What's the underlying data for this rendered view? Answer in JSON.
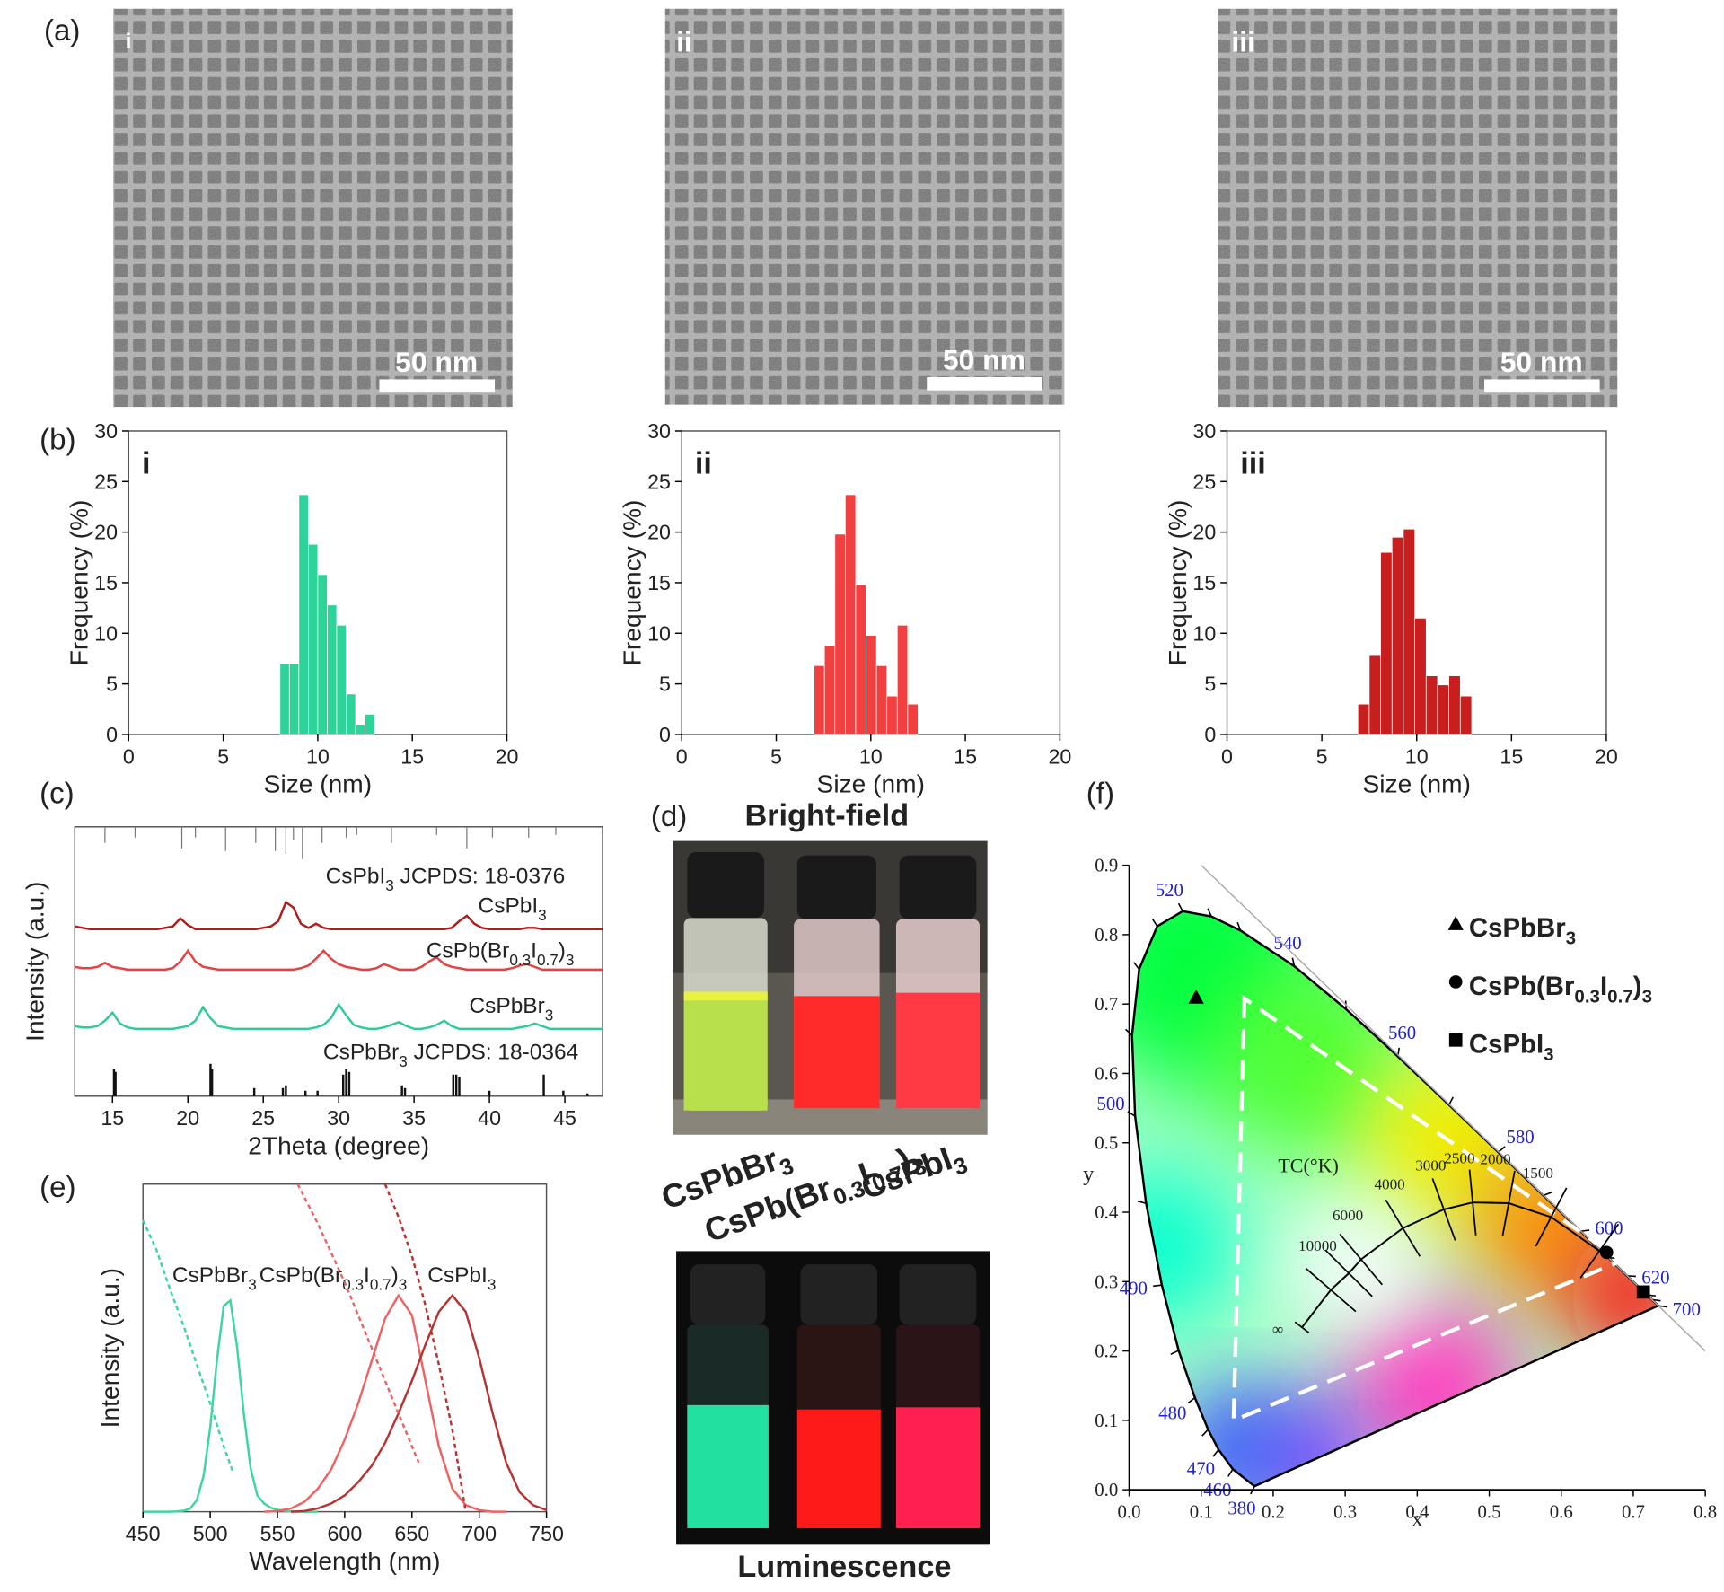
{
  "panel_labels": [
    "(a)",
    "(b)",
    "(c)",
    "(d)",
    "(e)",
    "(f)"
  ],
  "tem": {
    "labels": [
      "i",
      "ii",
      "iii"
    ],
    "scale_bar": "50 nm"
  },
  "photos": {
    "top_title": "Bright-field",
    "bottom_title": "Luminescence",
    "samples": [
      "CsPbBr3",
      "CsPb(Br0.3I0.7)3",
      "CsPbI3"
    ]
  },
  "chart_data": [
    {
      "type": "histogram",
      "label": "i",
      "xlabel": "Size (nm)",
      "ylabel": "Frequency (%)",
      "bins": [
        8,
        8.5,
        9,
        9.5,
        10,
        10.5,
        11,
        11.5,
        12,
        12.5,
        13
      ],
      "values": [
        7,
        7,
        23.7,
        18.8,
        15.8,
        12.8,
        10.8,
        4,
        1,
        2
      ],
      "color": "#2ed39a",
      "xlim": [
        0,
        20
      ],
      "xticks": [
        0,
        5,
        10,
        15,
        20
      ],
      "ylim": [
        0,
        30
      ],
      "yticks": [
        0,
        5,
        10,
        15,
        20,
        25,
        30
      ]
    },
    {
      "type": "histogram",
      "label": "ii",
      "xlabel": "Size (nm)",
      "ylabel": "Frequency (%)",
      "bins": [
        7,
        7.55,
        8.1,
        8.65,
        9.2,
        9.75,
        10.3,
        10.85,
        11.4,
        11.95,
        12.5
      ],
      "values": [
        6.8,
        8.8,
        19.8,
        23.7,
        14.8,
        9.8,
        6.8,
        3.8,
        10.8,
        3
      ],
      "color": "#f23f3f",
      "xlim": [
        0,
        20
      ],
      "xticks": [
        0,
        5,
        10,
        15,
        20
      ],
      "ylim": [
        0,
        30
      ],
      "yticks": [
        0,
        5,
        10,
        15,
        20,
        25,
        30
      ]
    },
    {
      "type": "histogram",
      "label": "iii",
      "xlabel": "Size (nm)",
      "ylabel": "Frequency (%)",
      "bins": [
        6.9,
        7.5,
        8.1,
        8.7,
        9.3,
        9.9,
        10.5,
        11.1,
        11.7,
        12.3,
        12.9
      ],
      "values": [
        3,
        7.8,
        18,
        19.5,
        20.3,
        11.5,
        5.8,
        4.9,
        5.8,
        3.8
      ],
      "color": "#c81e1e",
      "xlim": [
        0,
        20
      ],
      "xticks": [
        0,
        5,
        10,
        15,
        20
      ],
      "ylim": [
        0,
        30
      ],
      "yticks": [
        0,
        5,
        10,
        15,
        20,
        25,
        30
      ]
    },
    {
      "type": "line",
      "xlabel": "2Theta (degree)",
      "ylabel": "Intensity (a.u.)",
      "xlim": [
        12.5,
        47.5
      ],
      "xticks": [
        15,
        20,
        25,
        30,
        35,
        40,
        45
      ],
      "ylim": [
        0,
        100
      ],
      "x": [
        12.5,
        13,
        13.5,
        14,
        14.5,
        15,
        15.5,
        16,
        16.5,
        17,
        17.5,
        18,
        18.5,
        19,
        19.5,
        20,
        20.5,
        21,
        21.5,
        22,
        22.5,
        23,
        23.5,
        24,
        24.5,
        25,
        25.5,
        26,
        26.5,
        27,
        27.5,
        28,
        28.5,
        29,
        29.5,
        30,
        30.5,
        31,
        31.5,
        32,
        32.5,
        33,
        33.5,
        34,
        34.5,
        35,
        35.5,
        36,
        36.5,
        37,
        37.5,
        38,
        38.5,
        39,
        39.5,
        40,
        40.5,
        41,
        41.5,
        42,
        42.5,
        43,
        43.5,
        44,
        44.5,
        45,
        45.5,
        46,
        46.5,
        47,
        47.5
      ],
      "series": [
        {
          "name": "CsPbI3",
          "color": "#b01c1c",
          "values": [
            63,
            62.5,
            62,
            62,
            62,
            62,
            62,
            62,
            62,
            62,
            62,
            62,
            62.5,
            63,
            66,
            63.5,
            62,
            62,
            62,
            62,
            62,
            62,
            62,
            62,
            62,
            62.5,
            63,
            65,
            72,
            70,
            64,
            62.5,
            64,
            62.5,
            62,
            62,
            62,
            62,
            62,
            62,
            62,
            62,
            62,
            62,
            62,
            62,
            62,
            62,
            62,
            62,
            62.5,
            65,
            67,
            64,
            62.5,
            62,
            62,
            62,
            62,
            62,
            62.5,
            62.5,
            62,
            62,
            62,
            62,
            62,
            62,
            62,
            62,
            62
          ]
        },
        {
          "name": "CsPb(Br0.3I0.7)3",
          "color": "#e84040",
          "values": [
            48,
            47.5,
            47.5,
            48,
            49.5,
            48,
            47.5,
            47,
            47,
            47,
            47,
            47,
            47,
            47.5,
            50,
            54,
            50,
            48,
            47.5,
            47,
            47,
            47,
            47,
            47,
            47,
            47,
            47,
            47,
            47,
            47,
            47.5,
            48.5,
            51,
            54,
            51,
            49,
            48,
            47.5,
            47,
            47,
            47.5,
            49,
            48,
            47,
            47,
            47,
            48,
            50,
            51.5,
            49,
            48,
            47.5,
            47,
            47,
            47,
            47,
            47,
            47,
            47.5,
            48.5,
            49,
            48,
            47,
            47,
            47,
            47,
            47,
            47,
            47,
            47,
            47
          ]
        },
        {
          "name": "CsPbBr3",
          "color": "#2fc99a",
          "values": [
            26,
            25.5,
            25.5,
            26,
            28,
            31,
            27,
            25.5,
            25,
            25,
            25,
            25,
            25,
            25,
            25.5,
            26,
            28,
            33,
            29,
            26,
            25.5,
            25,
            25,
            25,
            25,
            25,
            25,
            25,
            25,
            25,
            25,
            25,
            25.5,
            26.5,
            29,
            34,
            30,
            26.5,
            25.5,
            25,
            25,
            25.5,
            26.5,
            27.5,
            26,
            25,
            25,
            25.5,
            26.5,
            28,
            26,
            25,
            25,
            25,
            25,
            25,
            25,
            25,
            25,
            25.5,
            26,
            27,
            26,
            25,
            25,
            25,
            25,
            25,
            25,
            25,
            25
          ]
        }
      ],
      "references": [
        {
          "name": "CsPbI3 JCPDS: 18-0376",
          "side": "top",
          "x": [
            14.5,
            16.5,
            19.6,
            20.5,
            22.5,
            24.5,
            25.8,
            26.5,
            27.0,
            27.6,
            28.9,
            30.5,
            31.2,
            33.5,
            36.5,
            38.5,
            40.2,
            42.6,
            44.4
          ],
          "values": [
            6,
            4,
            8,
            4,
            9,
            6,
            9,
            10,
            5,
            12,
            6,
            4,
            3,
            6,
            3,
            8,
            4,
            4,
            3
          ]
        },
        {
          "name": "CsPbBr3 JCPDS: 18-0364",
          "side": "bottom",
          "x": [
            15.1,
            15.2,
            21.5,
            21.6,
            24.4,
            26.3,
            26.5,
            27.8,
            28.6,
            30.3,
            30.5,
            30.7,
            34.2,
            34.4,
            37.6,
            37.8,
            38.0,
            40.0,
            43.6,
            44.9,
            46.5
          ],
          "values": [
            10,
            9,
            12,
            10,
            3,
            3,
            4,
            2,
            2,
            8,
            10,
            9,
            4,
            3,
            8,
            8,
            7,
            2,
            8,
            2,
            1
          ]
        }
      ]
    },
    {
      "type": "line",
      "xlabel": "Wavelength (nm)",
      "ylabel": "Intensity (a.u.)",
      "xlim": [
        450,
        750
      ],
      "xticks": [
        450,
        500,
        550,
        600,
        650,
        700,
        750
      ],
      "ylim": [
        0,
        100
      ],
      "series": [
        {
          "name": "CsPbBr3",
          "color": "#3dd6a0",
          "dashed": false,
          "x": [
            450,
            455,
            460,
            465,
            470,
            475,
            480,
            485,
            490,
            495,
            500,
            505,
            510,
            515,
            520,
            525,
            530,
            535,
            540,
            545,
            550,
            555,
            560,
            565,
            570,
            575,
            580
          ],
          "values": [
            0,
            0,
            0,
            0,
            0,
            0.1,
            0.3,
            0.9,
            3.5,
            10.9,
            25.8,
            46.3,
            62.8,
            64.5,
            50.3,
            29.7,
            13.3,
            5,
            2.5,
            1.2,
            0.6,
            0.3,
            0.1,
            0,
            0,
            0,
            0
          ]
        },
        {
          "name": "CsPb(Br0.3I0.7)3",
          "color": "#ef6262",
          "dashed": false,
          "x": [
            540,
            550,
            560,
            570,
            580,
            590,
            600,
            610,
            620,
            630,
            640,
            650,
            660,
            670,
            680,
            690,
            700,
            710,
            720
          ],
          "values": [
            0,
            0.2,
            1,
            3,
            7,
            13,
            22,
            33,
            46,
            59,
            66,
            60,
            40,
            20,
            7,
            2,
            0.5,
            0,
            0
          ]
        },
        {
          "name": "CsPbI3",
          "color": "#b83232",
          "dashed": false,
          "x": [
            560,
            570,
            580,
            590,
            600,
            610,
            620,
            630,
            640,
            650,
            660,
            670,
            680,
            690,
            700,
            710,
            720,
            730,
            740,
            750
          ],
          "values": [
            0,
            0.2,
            1,
            2.5,
            5,
            9,
            14,
            21,
            30,
            40,
            51,
            61,
            66,
            61,
            47,
            30,
            15,
            6,
            2,
            0.5
          ]
        },
        {
          "color": "#3dd6a0",
          "dashed": true,
          "x": [
            450,
            460,
            470,
            480,
            490,
            500,
            510,
            517
          ],
          "values": [
            89,
            80,
            68,
            57,
            45,
            33,
            20,
            12
          ]
        },
        {
          "color": "#ef6262",
          "dashed": true,
          "x": [
            565,
            580,
            600,
            620,
            640,
            655
          ],
          "values": [
            100,
            88,
            70,
            50,
            30,
            15
          ]
        },
        {
          "color": "#b83232",
          "dashed": true,
          "x": [
            630,
            640,
            650,
            660,
            670,
            680,
            690
          ],
          "values": [
            100,
            90,
            78,
            63,
            45,
            25,
            0
          ]
        }
      ]
    },
    {
      "type": "scatter",
      "xlabel": "x",
      "ylabel": "y",
      "cct_label": "TC(°K)",
      "xlim": [
        0,
        0.8
      ],
      "xticks": [
        {
          "value": 0,
          "label": "0.0"
        },
        0.1,
        0.2,
        0.3,
        0.4,
        0.5,
        0.6,
        0.7,
        0.8
      ],
      "ylim": [
        0,
        0.9
      ],
      "yticks": [
        {
          "value": 0,
          "label": "0.0"
        },
        0.1,
        0.2,
        0.3,
        0.4,
        0.5,
        0.6,
        0.7,
        0.8,
        0.9
      ],
      "series": [
        {
          "name": "CsPbBr3",
          "marker": "triangle",
          "color": "#000000",
          "x": [
            0.093
          ],
          "values": [
            0.71
          ]
        },
        {
          "name": "CsPb(Br0.3I0.7)3",
          "marker": "circle",
          "color": "#000000",
          "x": [
            0.663
          ],
          "values": [
            0.342
          ]
        },
        {
          "name": "CsPbI3",
          "marker": "square",
          "color": "#000000",
          "x": [
            0.714
          ],
          "values": [
            0.285
          ]
        }
      ],
      "spectral_locus": {
        "x": [
          0.1741,
          0.144,
          0.1241,
          0.1096,
          0.0913,
          0.0687,
          0.0454,
          0.0235,
          0.0082,
          0.0039,
          0.0139,
          0.0389,
          0.0743,
          0.1142,
          0.1547,
          0.2296,
          0.3016,
          0.3731,
          0.4441,
          0.5125,
          0.5752,
          0.627,
          0.6658,
          0.6915,
          0.7079,
          0.719,
          0.726,
          0.7347
        ],
        "y": [
          0.005,
          0.0297,
          0.0578,
          0.0868,
          0.1327,
          0.2007,
          0.295,
          0.4127,
          0.5384,
          0.6548,
          0.7502,
          0.812,
          0.8338,
          0.8262,
          0.8059,
          0.7543,
          0.6923,
          0.6245,
          0.5547,
          0.4866,
          0.4242,
          0.3725,
          0.334,
          0.3083,
          0.292,
          0.2809,
          0.274,
          0.2653
        ],
        "labels": [
          380,
          460,
          470,
          null,
          480,
          null,
          490,
          null,
          500,
          null,
          null,
          null,
          520,
          null,
          null,
          540,
          null,
          560,
          null,
          580,
          null,
          600,
          null,
          620,
          null,
          null,
          null,
          700
        ]
      },
      "planckian_locus": {
        "x": [
          0.24,
          0.28,
          0.305,
          0.322,
          0.38,
          0.437,
          0.477,
          0.527,
          0.586,
          0.653
        ],
        "y": [
          0.234,
          0.288,
          0.312,
          0.332,
          0.377,
          0.404,
          0.414,
          0.413,
          0.393,
          0.344
        ],
        "labels": [
          "∞",
          10000,
          null,
          6000,
          4000,
          3000,
          2500,
          2000,
          1500,
          null
        ]
      },
      "gamut_triangle": {
        "x": [
          0.16,
          0.145,
          0.684
        ],
        "y": [
          0.708,
          0.1,
          0.33
        ]
      }
    }
  ]
}
